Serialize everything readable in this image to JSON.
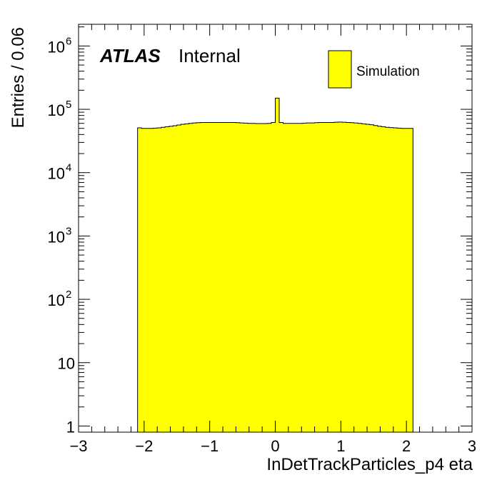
{
  "chart_data": {
    "type": "histogram",
    "title": "",
    "xlabel": "InDetTrackParticles_p4 eta",
    "ylabel": "Entries / 0.06",
    "xlim": [
      -3,
      3
    ],
    "ylim": [
      0.8,
      2200000
    ],
    "y_scale": "log",
    "bin_width": 0.06,
    "x_ticks": [
      -3,
      -2,
      -1,
      0,
      1,
      2,
      3
    ],
    "x_tick_labels": [
      "−3",
      "−2",
      "−1",
      "0",
      "1",
      "2",
      "3"
    ],
    "y_ticks": [
      1,
      10,
      100,
      1000,
      10000,
      100000,
      1000000
    ],
    "y_tick_labels": [
      {
        "base": "1",
        "exp": ""
      },
      {
        "base": "10",
        "exp": ""
      },
      {
        "base": "10",
        "exp": "2"
      },
      {
        "base": "10",
        "exp": "3"
      },
      {
        "base": "10",
        "exp": "4"
      },
      {
        "base": "10",
        "exp": "5"
      },
      {
        "base": "10",
        "exp": "6"
      }
    ],
    "fill_color": "#ffff00",
    "grid": false,
    "legend_position": "top-right",
    "series": [
      {
        "name": "Simulation",
        "color": "#ffff00",
        "bins": [
          {
            "x0": -2.1,
            "x1": -2.04,
            "y": 51000
          },
          {
            "x0": -2.04,
            "x1": -1.98,
            "y": 50000
          },
          {
            "x0": -1.98,
            "x1": -1.92,
            "y": 50000
          },
          {
            "x0": -1.92,
            "x1": -1.86,
            "y": 50000
          },
          {
            "x0": -1.86,
            "x1": -1.8,
            "y": 50500
          },
          {
            "x0": -1.8,
            "x1": -1.74,
            "y": 51000
          },
          {
            "x0": -1.74,
            "x1": -1.68,
            "y": 52000
          },
          {
            "x0": -1.68,
            "x1": -1.62,
            "y": 53000
          },
          {
            "x0": -1.62,
            "x1": -1.56,
            "y": 54000
          },
          {
            "x0": -1.56,
            "x1": -1.5,
            "y": 55000
          },
          {
            "x0": -1.5,
            "x1": -1.44,
            "y": 56500
          },
          {
            "x0": -1.44,
            "x1": -1.38,
            "y": 58000
          },
          {
            "x0": -1.38,
            "x1": -1.32,
            "y": 59000
          },
          {
            "x0": -1.32,
            "x1": -1.26,
            "y": 60000
          },
          {
            "x0": -1.26,
            "x1": -1.2,
            "y": 61000
          },
          {
            "x0": -1.2,
            "x1": -1.14,
            "y": 61500
          },
          {
            "x0": -1.14,
            "x1": -1.08,
            "y": 62000
          },
          {
            "x0": -1.08,
            "x1": -1.02,
            "y": 62000
          },
          {
            "x0": -1.02,
            "x1": -0.96,
            "y": 62000
          },
          {
            "x0": -0.96,
            "x1": -0.9,
            "y": 62000
          },
          {
            "x0": -0.9,
            "x1": -0.84,
            "y": 62000
          },
          {
            "x0": -0.84,
            "x1": -0.78,
            "y": 62000
          },
          {
            "x0": -0.78,
            "x1": -0.72,
            "y": 62000
          },
          {
            "x0": -0.72,
            "x1": -0.66,
            "y": 62000
          },
          {
            "x0": -0.66,
            "x1": -0.6,
            "y": 62000
          },
          {
            "x0": -0.6,
            "x1": -0.54,
            "y": 61500
          },
          {
            "x0": -0.54,
            "x1": -0.48,
            "y": 61000
          },
          {
            "x0": -0.48,
            "x1": -0.42,
            "y": 60500
          },
          {
            "x0": -0.42,
            "x1": -0.36,
            "y": 60000
          },
          {
            "x0": -0.36,
            "x1": -0.3,
            "y": 60000
          },
          {
            "x0": -0.3,
            "x1": -0.24,
            "y": 59500
          },
          {
            "x0": -0.24,
            "x1": -0.18,
            "y": 59500
          },
          {
            "x0": -0.18,
            "x1": -0.12,
            "y": 59500
          },
          {
            "x0": -0.12,
            "x1": -0.06,
            "y": 60000
          },
          {
            "x0": -0.06,
            "x1": 0.0,
            "y": 62000
          },
          {
            "x0": 0.0,
            "x1": 0.06,
            "y": 150000
          },
          {
            "x0": 0.06,
            "x1": 0.12,
            "y": 62000
          },
          {
            "x0": 0.12,
            "x1": 0.18,
            "y": 60000
          },
          {
            "x0": 0.18,
            "x1": 0.24,
            "y": 60000
          },
          {
            "x0": 0.24,
            "x1": 0.3,
            "y": 60000
          },
          {
            "x0": 0.3,
            "x1": 0.36,
            "y": 60000
          },
          {
            "x0": 0.36,
            "x1": 0.42,
            "y": 60000
          },
          {
            "x0": 0.42,
            "x1": 0.48,
            "y": 60500
          },
          {
            "x0": 0.48,
            "x1": 0.54,
            "y": 61000
          },
          {
            "x0": 0.54,
            "x1": 0.6,
            "y": 61000
          },
          {
            "x0": 0.6,
            "x1": 0.66,
            "y": 61500
          },
          {
            "x0": 0.66,
            "x1": 0.72,
            "y": 62000
          },
          {
            "x0": 0.72,
            "x1": 0.78,
            "y": 62000
          },
          {
            "x0": 0.78,
            "x1": 0.84,
            "y": 62000
          },
          {
            "x0": 0.84,
            "x1": 0.9,
            "y": 62000
          },
          {
            "x0": 0.9,
            "x1": 0.96,
            "y": 62500
          },
          {
            "x0": 0.96,
            "x1": 1.02,
            "y": 63000
          },
          {
            "x0": 1.02,
            "x1": 1.08,
            "y": 62500
          },
          {
            "x0": 1.08,
            "x1": 1.14,
            "y": 62000
          },
          {
            "x0": 1.14,
            "x1": 1.2,
            "y": 61500
          },
          {
            "x0": 1.2,
            "x1": 1.26,
            "y": 61000
          },
          {
            "x0": 1.26,
            "x1": 1.32,
            "y": 60000
          },
          {
            "x0": 1.32,
            "x1": 1.38,
            "y": 59000
          },
          {
            "x0": 1.38,
            "x1": 1.44,
            "y": 58000
          },
          {
            "x0": 1.44,
            "x1": 1.5,
            "y": 57000
          },
          {
            "x0": 1.5,
            "x1": 1.56,
            "y": 55500
          },
          {
            "x0": 1.56,
            "x1": 1.62,
            "y": 54000
          },
          {
            "x0": 1.62,
            "x1": 1.68,
            "y": 53000
          },
          {
            "x0": 1.68,
            "x1": 1.74,
            "y": 52000
          },
          {
            "x0": 1.74,
            "x1": 1.8,
            "y": 51500
          },
          {
            "x0": 1.8,
            "x1": 1.86,
            "y": 51000
          },
          {
            "x0": 1.86,
            "x1": 1.92,
            "y": 50500
          },
          {
            "x0": 1.92,
            "x1": 1.98,
            "y": 50000
          },
          {
            "x0": 1.98,
            "x1": 2.04,
            "y": 50000
          },
          {
            "x0": 2.04,
            "x1": 2.1,
            "y": 50000
          }
        ]
      }
    ],
    "annotations": [
      {
        "label": "ATLAS",
        "style": "bold-italic"
      },
      {
        "label": "Internal",
        "style": "normal"
      }
    ]
  }
}
